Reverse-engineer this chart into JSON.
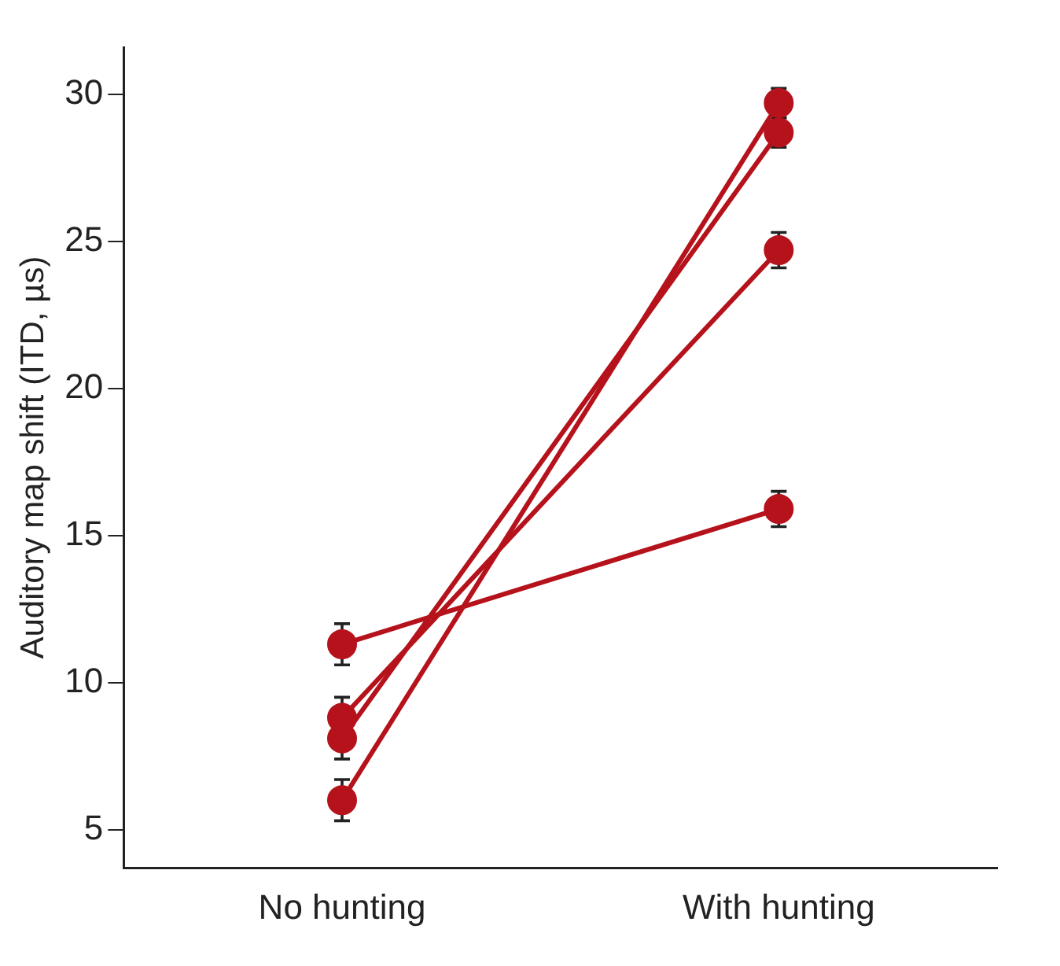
{
  "chart_data": {
    "type": "line",
    "ylabel": "Auditory map shift (ITD, µs)",
    "categories": [
      "No hunting",
      "With hunting"
    ],
    "series": [
      {
        "color": "#b5121b",
        "values": [
          11.3,
          15.9
        ],
        "errors": [
          0.7,
          0.6
        ]
      },
      {
        "color": "#b5121b",
        "values": [
          8.8,
          24.7
        ],
        "errors": [
          0.7,
          0.6
        ]
      },
      {
        "color": "#b5121b",
        "values": [
          8.1,
          28.7
        ],
        "errors": [
          0.7,
          0.5
        ]
      },
      {
        "color": "#b5121b",
        "values": [
          6.0,
          29.7
        ],
        "errors": [
          0.7,
          0.5
        ]
      }
    ],
    "ylim": [
      3.7,
      31.6
    ],
    "yticks": [
      5,
      10,
      15,
      20,
      25,
      30
    ],
    "grid": false,
    "legend": false,
    "marker": "circle",
    "line_style": "solid"
  }
}
